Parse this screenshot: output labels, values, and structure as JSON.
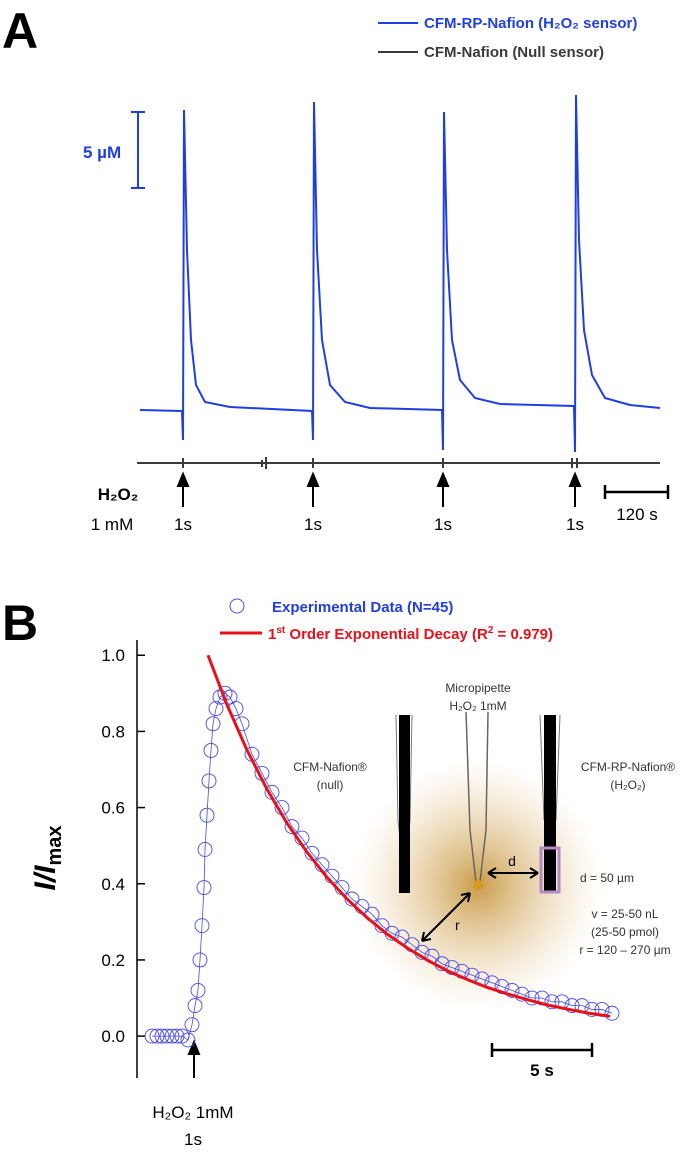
{
  "panel_a": {
    "label": "A",
    "legend": [
      {
        "name": "CFM-RP-Nafion (H₂O₂ sensor)",
        "color": "#1f3fe0"
      },
      {
        "name": "CFM-Nafion (Null sensor)",
        "color": "#3a3a3a"
      }
    ],
    "scale_bar": "5 µM",
    "stimulus": [
      "H₂O₂",
      "1 mM"
    ],
    "pulses": [
      "1s",
      "1s",
      "1s",
      "1s"
    ],
    "time_bar": "120 s"
  },
  "chart_data": {
    "type": "scatter",
    "label": "B",
    "ylabel": [
      "I/I",
      "max"
    ],
    "series": [
      {
        "name": "Experimental Data (N=45)",
        "color": "#4a4ae6",
        "style": "markers",
        "x": [
          0.75,
          1.0,
          1.25,
          1.5,
          1.75,
          2.0,
          2.25,
          2.55,
          2.75,
          2.9,
          3.05,
          3.15,
          3.25,
          3.35,
          3.4,
          3.5,
          3.6,
          3.7,
          3.8,
          3.95,
          4.15,
          4.4,
          4.65,
          4.95,
          5.25,
          5.75,
          6.25,
          6.75,
          7.25,
          7.75,
          8.25,
          8.75,
          9.25,
          9.75,
          10.25,
          10.75,
          11.25,
          11.75,
          12.25,
          12.75,
          13.25,
          13.75,
          14.25,
          14.75,
          15.25,
          15.75,
          16.25,
          16.75,
          17.25,
          17.75,
          18.25,
          18.75,
          19.25,
          19.75,
          20.25,
          20.75,
          21.25,
          21.75,
          22.25,
          22.75,
          23.25,
          23.75
        ],
        "values": [
          0,
          0,
          0,
          0,
          0,
          0,
          0,
          -0.01,
          0.03,
          0.08,
          0.12,
          0.2,
          0.29,
          0.39,
          0.49,
          0.58,
          0.67,
          0.75,
          0.82,
          0.86,
          0.89,
          0.9,
          0.89,
          0.86,
          0.82,
          0.74,
          0.69,
          0.64,
          0.6,
          0.55,
          0.52,
          0.48,
          0.45,
          0.42,
          0.39,
          0.36,
          0.34,
          0.32,
          0.29,
          0.27,
          0.26,
          0.24,
          0.22,
          0.21,
          0.19,
          0.18,
          0.17,
          0.16,
          0.15,
          0.14,
          0.13,
          0.12,
          0.11,
          0.1,
          0.1,
          0.09,
          0.09,
          0.08,
          0.08,
          0.07,
          0.07,
          0.06
        ]
      },
      {
        "name_parts": [
          "1",
          "st",
          " Order Exponential Decay (R",
          "2",
          " = 0.979)"
        ],
        "color": "#e8101a",
        "style": "line",
        "x": [
          3.55,
          4.5,
          5.5,
          6.5,
          7.5,
          8.5,
          9.5,
          10.5,
          11.5,
          12.5,
          13.5,
          14.5,
          15.5,
          16.5,
          17.5,
          18.5,
          19.5,
          20.5,
          21.5,
          22.5,
          23.65
        ],
        "values": [
          1.0,
          0.87,
          0.751,
          0.648,
          0.559,
          0.483,
          0.417,
          0.36,
          0.311,
          0.268,
          0.232,
          0.2,
          0.172,
          0.149,
          0.128,
          0.111,
          0.096,
          0.082,
          0.071,
          0.061,
          0.052
        ]
      }
    ],
    "xlim": [
      0,
      26.15
    ],
    "ylim": [
      -0.11,
      1.04
    ],
    "yticks": [
      {
        "value": 0,
        "label": "0.0"
      },
      {
        "value": 0.2,
        "label": "0.2"
      },
      {
        "value": 0.4,
        "label": "0.4"
      },
      {
        "value": 0.6,
        "label": "0.6"
      },
      {
        "value": 0.8,
        "label": "0.8"
      },
      {
        "value": 1,
        "label": "1.0"
      }
    ],
    "scale_bar": {
      "value": 5,
      "label": "5 s"
    },
    "annotation": [
      "H₂O₂ 1mM",
      "1s"
    ],
    "inset": {
      "left": [
        "CFM-Nafion®",
        "(null)"
      ],
      "middle": [
        "Micropipette",
        "H₂O₂ 1mM"
      ],
      "right": [
        "CFM-RP-Nafion®",
        "(H₂O₂)"
      ],
      "d": "d",
      "r": "r",
      "notes": [
        "d = 50 µm",
        "v = 25-50 nL",
        "(25-50 pmol)",
        "r = 120 – 270 µm"
      ]
    }
  }
}
